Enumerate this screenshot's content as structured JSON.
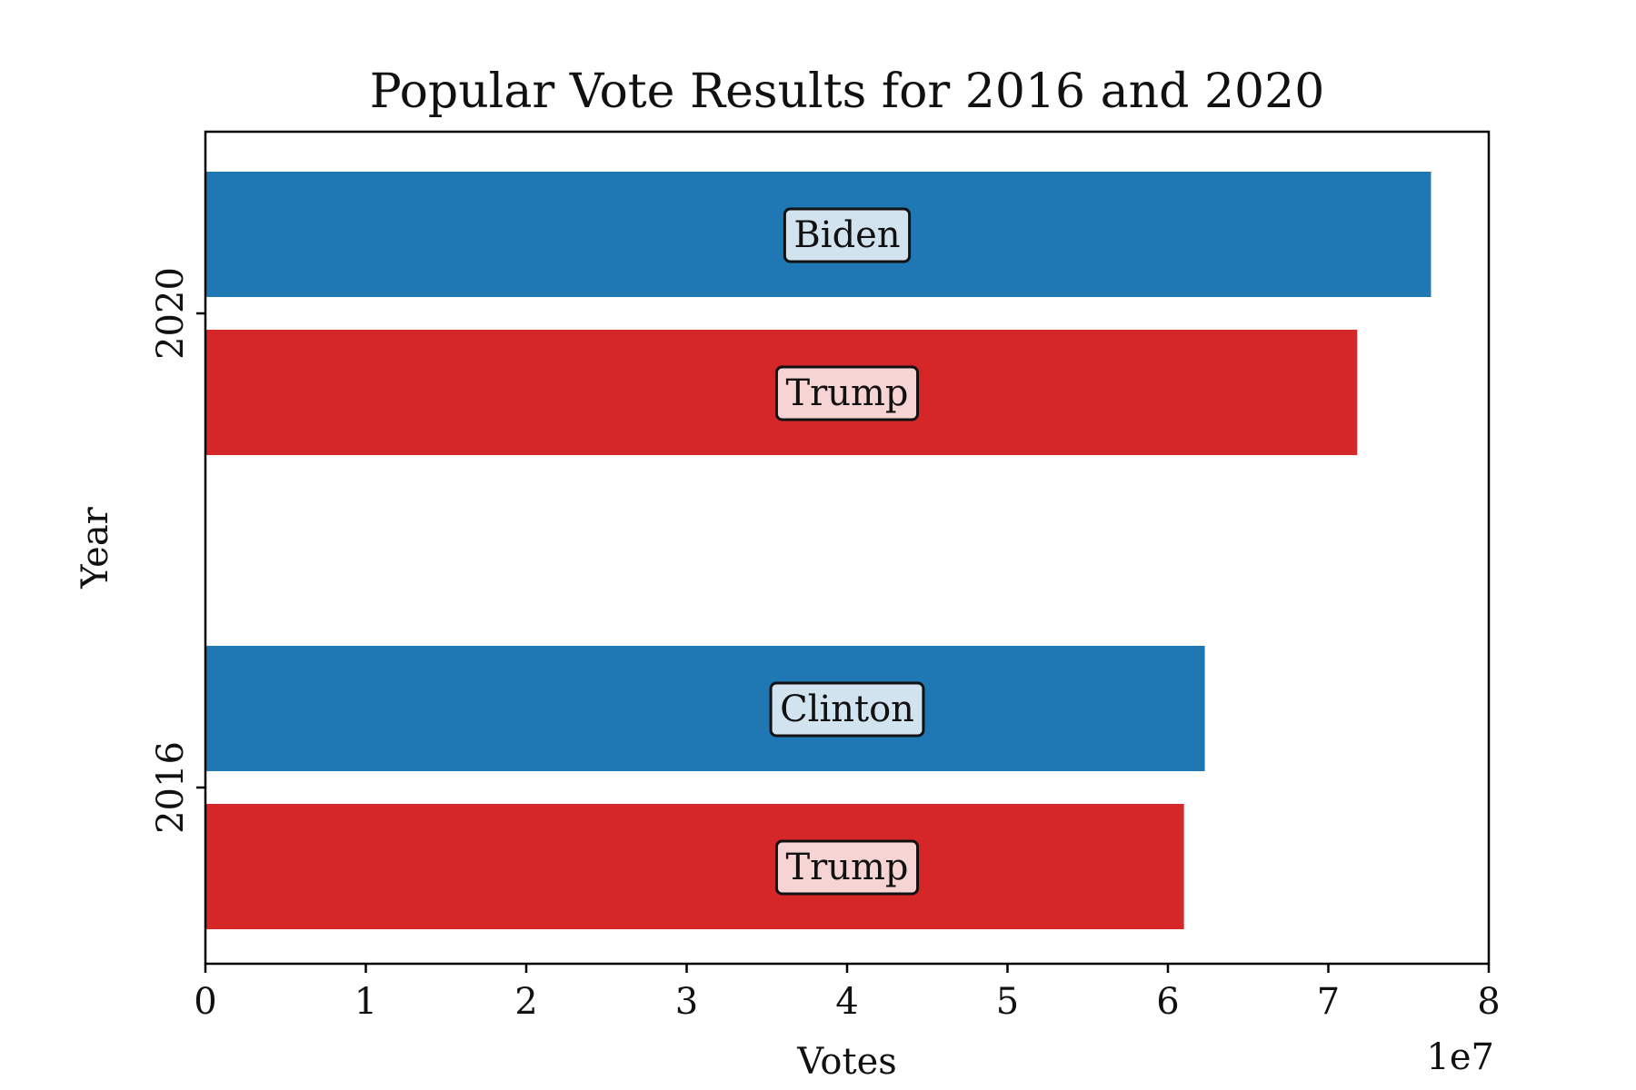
{
  "chart_data": {
    "type": "bar",
    "orientation": "horizontal",
    "title": "Popular Vote Results for 2016 and 2020",
    "xlabel": "Votes",
    "ylabel": "Year",
    "x_scale_note": "1e7",
    "xlim": [
      0,
      80000000
    ],
    "x_ticks": [
      {
        "value": 0,
        "label": "0"
      },
      {
        "value": 10000000,
        "label": "1"
      },
      {
        "value": 20000000,
        "label": "2"
      },
      {
        "value": 30000000,
        "label": "3"
      },
      {
        "value": 40000000,
        "label": "4"
      },
      {
        "value": 50000000,
        "label": "5"
      },
      {
        "value": 60000000,
        "label": "6"
      },
      {
        "value": 70000000,
        "label": "7"
      },
      {
        "value": 80000000,
        "label": "8"
      }
    ],
    "categories": [
      "2016",
      "2020"
    ],
    "bars": [
      {
        "year": "2016",
        "candidate": "Trump",
        "party": "rep",
        "value": 61000000
      },
      {
        "year": "2016",
        "candidate": "Clinton",
        "party": "dem",
        "value": 62300000
      },
      {
        "year": "2020",
        "candidate": "Trump",
        "party": "rep",
        "value": 71800000
      },
      {
        "year": "2020",
        "candidate": "Biden",
        "party": "dem",
        "value": 76400000
      }
    ],
    "colors": {
      "dem": "#1f77b4",
      "rep": "#d62728",
      "dem_label_bg": "#d2e3f0",
      "rep_label_bg": "#f7d4d4"
    },
    "grid": false,
    "legend": "none"
  }
}
